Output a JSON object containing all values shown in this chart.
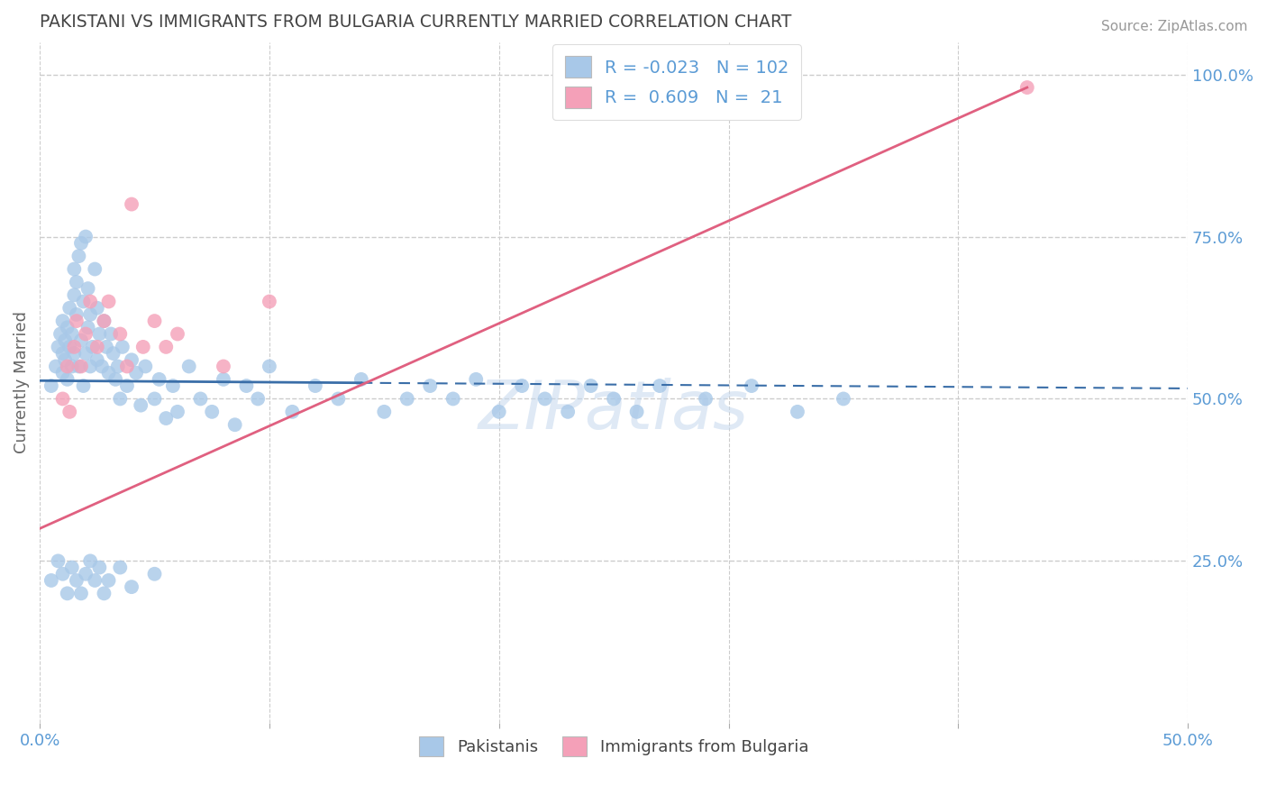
{
  "title": "PAKISTANI VS IMMIGRANTS FROM BULGARIA CURRENTLY MARRIED CORRELATION CHART",
  "source": "Source: ZipAtlas.com",
  "ylabel": "Currently Married",
  "xlim": [
    0.0,
    0.5
  ],
  "ylim": [
    0.0,
    1.05
  ],
  "legend_R1": "-0.023",
  "legend_N1": "102",
  "legend_R2": "0.609",
  "legend_N2": "21",
  "blue_color": "#a8c8e8",
  "pink_color": "#f4a0b8",
  "blue_line_color": "#3a6ea8",
  "pink_line_color": "#e06080",
  "grid_color": "#cccccc",
  "title_color": "#444444",
  "axis_color": "#5b9bd5",
  "watermark": "ZIPatlas",
  "pak_x": [
    0.005,
    0.007,
    0.008,
    0.009,
    0.01,
    0.01,
    0.01,
    0.011,
    0.011,
    0.012,
    0.012,
    0.013,
    0.013,
    0.014,
    0.014,
    0.015,
    0.015,
    0.015,
    0.016,
    0.016,
    0.017,
    0.017,
    0.018,
    0.018,
    0.019,
    0.019,
    0.02,
    0.02,
    0.021,
    0.021,
    0.022,
    0.022,
    0.023,
    0.024,
    0.025,
    0.025,
    0.026,
    0.027,
    0.028,
    0.029,
    0.03,
    0.031,
    0.032,
    0.033,
    0.034,
    0.035,
    0.036,
    0.038,
    0.04,
    0.042,
    0.044,
    0.046,
    0.05,
    0.052,
    0.055,
    0.058,
    0.06,
    0.065,
    0.07,
    0.075,
    0.08,
    0.085,
    0.09,
    0.095,
    0.1,
    0.11,
    0.12,
    0.13,
    0.14,
    0.15,
    0.16,
    0.17,
    0.18,
    0.19,
    0.2,
    0.21,
    0.22,
    0.23,
    0.24,
    0.25,
    0.26,
    0.27,
    0.29,
    0.31,
    0.33,
    0.35,
    0.005,
    0.008,
    0.01,
    0.012,
    0.014,
    0.016,
    0.018,
    0.02,
    0.022,
    0.024,
    0.026,
    0.028,
    0.03,
    0.035,
    0.04,
    0.05
  ],
  "pak_y": [
    0.52,
    0.55,
    0.58,
    0.6,
    0.57,
    0.54,
    0.62,
    0.59,
    0.56,
    0.61,
    0.53,
    0.64,
    0.58,
    0.55,
    0.6,
    0.66,
    0.7,
    0.57,
    0.63,
    0.68,
    0.72,
    0.55,
    0.74,
    0.59,
    0.65,
    0.52,
    0.75,
    0.57,
    0.61,
    0.67,
    0.55,
    0.63,
    0.58,
    0.7,
    0.64,
    0.56,
    0.6,
    0.55,
    0.62,
    0.58,
    0.54,
    0.6,
    0.57,
    0.53,
    0.55,
    0.5,
    0.58,
    0.52,
    0.56,
    0.54,
    0.49,
    0.55,
    0.5,
    0.53,
    0.47,
    0.52,
    0.48,
    0.55,
    0.5,
    0.48,
    0.53,
    0.46,
    0.52,
    0.5,
    0.55,
    0.48,
    0.52,
    0.5,
    0.53,
    0.48,
    0.5,
    0.52,
    0.5,
    0.53,
    0.48,
    0.52,
    0.5,
    0.48,
    0.52,
    0.5,
    0.48,
    0.52,
    0.5,
    0.52,
    0.48,
    0.5,
    0.22,
    0.25,
    0.23,
    0.2,
    0.24,
    0.22,
    0.2,
    0.23,
    0.25,
    0.22,
    0.24,
    0.2,
    0.22,
    0.24,
    0.21,
    0.23
  ],
  "bul_x": [
    0.01,
    0.012,
    0.013,
    0.015,
    0.016,
    0.018,
    0.02,
    0.022,
    0.025,
    0.028,
    0.03,
    0.035,
    0.038,
    0.04,
    0.045,
    0.05,
    0.055,
    0.06,
    0.08,
    0.1,
    0.43
  ],
  "bul_y": [
    0.5,
    0.55,
    0.48,
    0.58,
    0.62,
    0.55,
    0.6,
    0.65,
    0.58,
    0.62,
    0.65,
    0.6,
    0.55,
    0.8,
    0.58,
    0.62,
    0.58,
    0.6,
    0.55,
    0.65,
    0.98
  ],
  "blue_line_x0": 0.0,
  "blue_line_x1": 0.5,
  "blue_line_y0": 0.528,
  "blue_line_y1": 0.516,
  "blue_line_solid_end": 0.14,
  "pink_line_x0": 0.0,
  "pink_line_x1": 0.43,
  "pink_line_y0": 0.3,
  "pink_line_y1": 0.98
}
